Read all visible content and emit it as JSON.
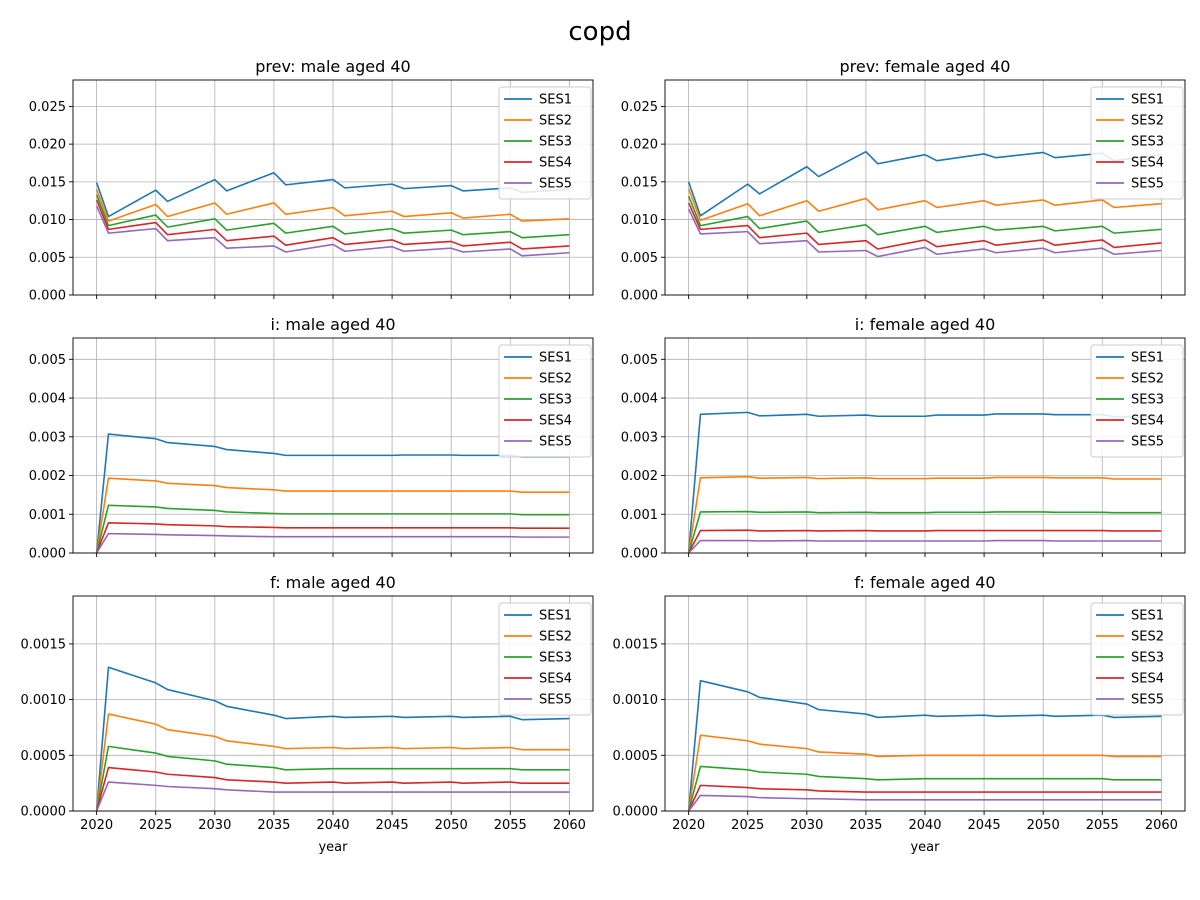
{
  "figure_title": "copd",
  "colors": {
    "SES1": "#1f77b4",
    "SES2": "#ff7f0e",
    "SES3": "#2ca02c",
    "SES4": "#d62728",
    "SES5": "#9467bd",
    "grid": "#b0b0b0",
    "axes": "#000000"
  },
  "chart_data": [
    {
      "type": "line",
      "title": "prev: male aged 40",
      "xlabel": "",
      "ylabel": "",
      "x": [
        2020,
        2021,
        2025,
        2026,
        2030,
        2031,
        2035,
        2036,
        2040,
        2041,
        2045,
        2046,
        2050,
        2051,
        2055,
        2056,
        2060
      ],
      "xlim": [
        2018,
        2062
      ],
      "ylim": [
        0,
        0.0285
      ],
      "xticks": [
        2020,
        2025,
        2030,
        2035,
        2040,
        2045,
        2050,
        2055,
        2060
      ],
      "xticklabels": [],
      "yticks": [
        0,
        0.005,
        0.01,
        0.015,
        0.02,
        0.025
      ],
      "yticklabels": [
        "0.000",
        "0.005",
        "0.010",
        "0.015",
        "0.020",
        "0.025"
      ],
      "grid": true,
      "legend": "top-right",
      "series": [
        {
          "name": "SES1",
          "values": [
            0.0149,
            0.0104,
            0.0139,
            0.0124,
            0.0153,
            0.0138,
            0.0162,
            0.0146,
            0.0153,
            0.0142,
            0.0147,
            0.0141,
            0.0145,
            0.0138,
            0.0142,
            0.0136,
            0.014
          ]
        },
        {
          "name": "SES2",
          "values": [
            0.014,
            0.0098,
            0.012,
            0.0104,
            0.0122,
            0.0107,
            0.0122,
            0.0107,
            0.0116,
            0.0105,
            0.0111,
            0.0104,
            0.0109,
            0.0102,
            0.0107,
            0.0098,
            0.0101
          ]
        },
        {
          "name": "SES3",
          "values": [
            0.0133,
            0.0092,
            0.0106,
            0.009,
            0.0101,
            0.0086,
            0.0095,
            0.0082,
            0.0091,
            0.0081,
            0.0088,
            0.0082,
            0.0086,
            0.008,
            0.0084,
            0.0076,
            0.008
          ]
        },
        {
          "name": "SES4",
          "values": [
            0.0126,
            0.0087,
            0.0096,
            0.008,
            0.0087,
            0.0072,
            0.0078,
            0.0066,
            0.0076,
            0.0067,
            0.0073,
            0.0067,
            0.0071,
            0.0065,
            0.007,
            0.0061,
            0.0065
          ]
        },
        {
          "name": "SES5",
          "values": [
            0.0118,
            0.0082,
            0.0088,
            0.0072,
            0.0076,
            0.0062,
            0.0065,
            0.0057,
            0.0067,
            0.0058,
            0.0064,
            0.0058,
            0.0062,
            0.0057,
            0.0061,
            0.0052,
            0.0056
          ]
        }
      ]
    },
    {
      "type": "line",
      "title": "prev: female aged 40",
      "xlabel": "",
      "ylabel": "",
      "x": [
        2020,
        2021,
        2025,
        2026,
        2030,
        2031,
        2035,
        2036,
        2040,
        2041,
        2045,
        2046,
        2050,
        2051,
        2055,
        2056,
        2060
      ],
      "xlim": [
        2018,
        2062
      ],
      "ylim": [
        0,
        0.0285
      ],
      "xticks": [
        2020,
        2025,
        2030,
        2035,
        2040,
        2045,
        2050,
        2055,
        2060
      ],
      "xticklabels": [],
      "yticks": [
        0,
        0.005,
        0.01,
        0.015,
        0.02,
        0.025
      ],
      "yticklabels": [
        "0.000",
        "0.005",
        "0.010",
        "0.015",
        "0.020",
        "0.025"
      ],
      "grid": true,
      "legend": "top-right",
      "series": [
        {
          "name": "SES1",
          "values": [
            0.015,
            0.0105,
            0.0147,
            0.0134,
            0.017,
            0.0157,
            0.019,
            0.0174,
            0.0186,
            0.0178,
            0.0187,
            0.0182,
            0.0189,
            0.0182,
            0.0188,
            0.0178,
            0.0186
          ]
        },
        {
          "name": "SES2",
          "values": [
            0.0141,
            0.0099,
            0.0121,
            0.0105,
            0.0125,
            0.0111,
            0.0128,
            0.0113,
            0.0125,
            0.0116,
            0.0125,
            0.0119,
            0.0126,
            0.0119,
            0.0126,
            0.0116,
            0.0121
          ]
        },
        {
          "name": "SES3",
          "values": [
            0.0131,
            0.0092,
            0.0104,
            0.0088,
            0.0098,
            0.0083,
            0.0093,
            0.008,
            0.0091,
            0.0083,
            0.0091,
            0.0086,
            0.0091,
            0.0085,
            0.0091,
            0.0082,
            0.0087
          ]
        },
        {
          "name": "SES4",
          "values": [
            0.0122,
            0.0087,
            0.0092,
            0.0076,
            0.0082,
            0.0067,
            0.0072,
            0.0061,
            0.0073,
            0.0064,
            0.0072,
            0.0066,
            0.0073,
            0.0066,
            0.0073,
            0.0063,
            0.0069
          ]
        },
        {
          "name": "SES5",
          "values": [
            0.0114,
            0.0081,
            0.0084,
            0.0068,
            0.0072,
            0.0057,
            0.0059,
            0.0051,
            0.0063,
            0.0054,
            0.0061,
            0.0056,
            0.0062,
            0.0056,
            0.0062,
            0.0054,
            0.0059
          ]
        }
      ]
    },
    {
      "type": "line",
      "title": "i: male aged 40",
      "xlabel": "",
      "ylabel": "",
      "x": [
        2020,
        2021,
        2025,
        2026,
        2030,
        2031,
        2035,
        2036,
        2040,
        2041,
        2045,
        2046,
        2050,
        2051,
        2055,
        2056,
        2060
      ],
      "xlim": [
        2018,
        2062
      ],
      "ylim": [
        0,
        0.00555
      ],
      "xticks": [
        2020,
        2025,
        2030,
        2035,
        2040,
        2045,
        2050,
        2055,
        2060
      ],
      "xticklabels": [],
      "yticks": [
        0,
        0.001,
        0.002,
        0.003,
        0.004,
        0.005
      ],
      "yticklabels": [
        "0.000",
        "0.001",
        "0.002",
        "0.003",
        "0.004",
        "0.005"
      ],
      "grid": true,
      "legend": "top-right",
      "series": [
        {
          "name": "SES1",
          "values": [
            0,
            0.00307,
            0.00295,
            0.00285,
            0.00275,
            0.00267,
            0.00257,
            0.00252,
            0.00252,
            0.00252,
            0.00252,
            0.00253,
            0.00253,
            0.00252,
            0.00252,
            0.00248,
            0.00248
          ]
        },
        {
          "name": "SES2",
          "values": [
            0,
            0.00193,
            0.00186,
            0.0018,
            0.00174,
            0.00169,
            0.00163,
            0.0016,
            0.0016,
            0.0016,
            0.0016,
            0.0016,
            0.0016,
            0.0016,
            0.0016,
            0.00157,
            0.00157
          ]
        },
        {
          "name": "SES3",
          "values": [
            0,
            0.00123,
            0.00119,
            0.00115,
            0.0011,
            0.00106,
            0.00102,
            0.00101,
            0.00101,
            0.00101,
            0.00101,
            0.00101,
            0.00101,
            0.00101,
            0.00101,
            0.00099,
            0.00099
          ]
        },
        {
          "name": "SES4",
          "values": [
            0,
            0.00078,
            0.00075,
            0.00073,
            0.0007,
            0.00068,
            0.00066,
            0.00065,
            0.00065,
            0.00065,
            0.00065,
            0.00065,
            0.00065,
            0.00065,
            0.00065,
            0.00064,
            0.00064
          ]
        },
        {
          "name": "SES5",
          "values": [
            0,
            0.0005,
            0.00048,
            0.00047,
            0.00045,
            0.00044,
            0.00042,
            0.00042,
            0.00042,
            0.00042,
            0.00042,
            0.00042,
            0.00042,
            0.00042,
            0.00042,
            0.00041,
            0.00041
          ]
        }
      ]
    },
    {
      "type": "line",
      "title": "i: female aged 40",
      "xlabel": "",
      "ylabel": "",
      "x": [
        2020,
        2021,
        2025,
        2026,
        2030,
        2031,
        2035,
        2036,
        2040,
        2041,
        2045,
        2046,
        2050,
        2051,
        2055,
        2056,
        2060
      ],
      "xlim": [
        2018,
        2062
      ],
      "ylim": [
        0,
        0.00555
      ],
      "xticks": [
        2020,
        2025,
        2030,
        2035,
        2040,
        2045,
        2050,
        2055,
        2060
      ],
      "xticklabels": [],
      "yticks": [
        0,
        0.001,
        0.002,
        0.003,
        0.004,
        0.005
      ],
      "yticklabels": [
        "0.000",
        "0.001",
        "0.002",
        "0.003",
        "0.004",
        "0.005"
      ],
      "grid": true,
      "legend": "top-right",
      "series": [
        {
          "name": "SES1",
          "values": [
            0,
            0.00358,
            0.00363,
            0.00354,
            0.00358,
            0.00353,
            0.00356,
            0.00353,
            0.00353,
            0.00356,
            0.00356,
            0.00359,
            0.00359,
            0.00357,
            0.00357,
            0.00352,
            0.00352
          ]
        },
        {
          "name": "SES2",
          "values": [
            0,
            0.00194,
            0.00197,
            0.00193,
            0.00195,
            0.00192,
            0.00194,
            0.00192,
            0.00192,
            0.00193,
            0.00193,
            0.00195,
            0.00195,
            0.00194,
            0.00194,
            0.00191,
            0.00191
          ]
        },
        {
          "name": "SES3",
          "values": [
            0,
            0.00106,
            0.00107,
            0.00105,
            0.00106,
            0.00104,
            0.00105,
            0.00104,
            0.00104,
            0.00105,
            0.00105,
            0.00106,
            0.00106,
            0.00105,
            0.00105,
            0.00104,
            0.00104
          ]
        },
        {
          "name": "SES4",
          "values": [
            0,
            0.00058,
            0.00059,
            0.00057,
            0.00058,
            0.00057,
            0.00058,
            0.00057,
            0.00057,
            0.00058,
            0.00058,
            0.00058,
            0.00058,
            0.00058,
            0.00058,
            0.00057,
            0.00057
          ]
        },
        {
          "name": "SES5",
          "values": [
            0,
            0.00032,
            0.00032,
            0.00031,
            0.00032,
            0.00031,
            0.00031,
            0.00031,
            0.00031,
            0.00031,
            0.00031,
            0.00032,
            0.00032,
            0.00031,
            0.00031,
            0.00031,
            0.00031
          ]
        }
      ]
    },
    {
      "type": "line",
      "title": "f: male aged 40",
      "xlabel": "year",
      "ylabel": "",
      "x": [
        2020,
        2021,
        2025,
        2026,
        2030,
        2031,
        2035,
        2036,
        2040,
        2041,
        2045,
        2046,
        2050,
        2051,
        2055,
        2056,
        2060
      ],
      "xlim": [
        2018,
        2062
      ],
      "ylim": [
        0,
        0.00193
      ],
      "xticks": [
        2020,
        2025,
        2030,
        2035,
        2040,
        2045,
        2050,
        2055,
        2060
      ],
      "xticklabels": [
        "2020",
        "2025",
        "2030",
        "2035",
        "2040",
        "2045",
        "2050",
        "2055",
        "2060"
      ],
      "yticks": [
        0,
        0.0005,
        0.001,
        0.0015
      ],
      "yticklabels": [
        "0.0000",
        "0.0005",
        "0.0010",
        "0.0015"
      ],
      "grid": true,
      "legend": "top-right",
      "series": [
        {
          "name": "SES1",
          "values": [
            0,
            0.00129,
            0.00115,
            0.00109,
            0.00099,
            0.00094,
            0.00086,
            0.00083,
            0.00085,
            0.00084,
            0.00085,
            0.00084,
            0.00085,
            0.00084,
            0.00085,
            0.00082,
            0.00083
          ]
        },
        {
          "name": "SES2",
          "values": [
            0,
            0.00087,
            0.00078,
            0.00073,
            0.00067,
            0.00063,
            0.00058,
            0.00056,
            0.00057,
            0.00056,
            0.00057,
            0.00056,
            0.00057,
            0.00056,
            0.00057,
            0.00055,
            0.00055
          ]
        },
        {
          "name": "SES3",
          "values": [
            0,
            0.00058,
            0.00052,
            0.00049,
            0.00045,
            0.00042,
            0.00039,
            0.00037,
            0.00038,
            0.00038,
            0.00038,
            0.00038,
            0.00038,
            0.00038,
            0.00038,
            0.00037,
            0.00037
          ]
        },
        {
          "name": "SES4",
          "values": [
            0,
            0.00039,
            0.00035,
            0.00033,
            0.0003,
            0.00028,
            0.00026,
            0.00025,
            0.00026,
            0.00025,
            0.00026,
            0.00025,
            0.00026,
            0.00025,
            0.00026,
            0.00025,
            0.00025
          ]
        },
        {
          "name": "SES5",
          "values": [
            0,
            0.00026,
            0.00023,
            0.00022,
            0.0002,
            0.00019,
            0.00017,
            0.00017,
            0.00017,
            0.00017,
            0.00017,
            0.00017,
            0.00017,
            0.00017,
            0.00017,
            0.00017,
            0.00017
          ]
        }
      ]
    },
    {
      "type": "line",
      "title": "f: female aged 40",
      "xlabel": "year",
      "ylabel": "",
      "x": [
        2020,
        2021,
        2025,
        2026,
        2030,
        2031,
        2035,
        2036,
        2040,
        2041,
        2045,
        2046,
        2050,
        2051,
        2055,
        2056,
        2060
      ],
      "xlim": [
        2018,
        2062
      ],
      "ylim": [
        0,
        0.00193
      ],
      "xticks": [
        2020,
        2025,
        2030,
        2035,
        2040,
        2045,
        2050,
        2055,
        2060
      ],
      "xticklabels": [
        "2020",
        "2025",
        "2030",
        "2035",
        "2040",
        "2045",
        "2050",
        "2055",
        "2060"
      ],
      "yticks": [
        0,
        0.0005,
        0.001,
        0.0015
      ],
      "yticklabels": [
        "0.0000",
        "0.0005",
        "0.0010",
        "0.0015"
      ],
      "grid": true,
      "legend": "top-right",
      "series": [
        {
          "name": "SES1",
          "values": [
            0,
            0.00117,
            0.00107,
            0.00102,
            0.00096,
            0.00091,
            0.00087,
            0.00084,
            0.00086,
            0.00085,
            0.00086,
            0.00085,
            0.00086,
            0.00085,
            0.00086,
            0.00084,
            0.00085
          ]
        },
        {
          "name": "SES2",
          "values": [
            0,
            0.00068,
            0.00063,
            0.0006,
            0.00056,
            0.00053,
            0.00051,
            0.00049,
            0.0005,
            0.0005,
            0.0005,
            0.0005,
            0.0005,
            0.0005,
            0.0005,
            0.00049,
            0.00049
          ]
        },
        {
          "name": "SES3",
          "values": [
            0,
            0.0004,
            0.00037,
            0.00035,
            0.00033,
            0.00031,
            0.00029,
            0.00028,
            0.00029,
            0.00029,
            0.00029,
            0.00029,
            0.00029,
            0.00029,
            0.00029,
            0.00028,
            0.00028
          ]
        },
        {
          "name": "SES4",
          "values": [
            0,
            0.00023,
            0.00021,
            0.0002,
            0.00019,
            0.00018,
            0.00017,
            0.00017,
            0.00017,
            0.00017,
            0.00017,
            0.00017,
            0.00017,
            0.00017,
            0.00017,
            0.00017,
            0.00017
          ]
        },
        {
          "name": "SES5",
          "values": [
            0,
            0.00014,
            0.00013,
            0.00012,
            0.00011,
            0.00011,
            0.0001,
            0.0001,
            0.0001,
            0.0001,
            0.0001,
            0.0001,
            0.0001,
            0.0001,
            0.0001,
            0.0001,
            0.0001
          ]
        }
      ]
    }
  ]
}
